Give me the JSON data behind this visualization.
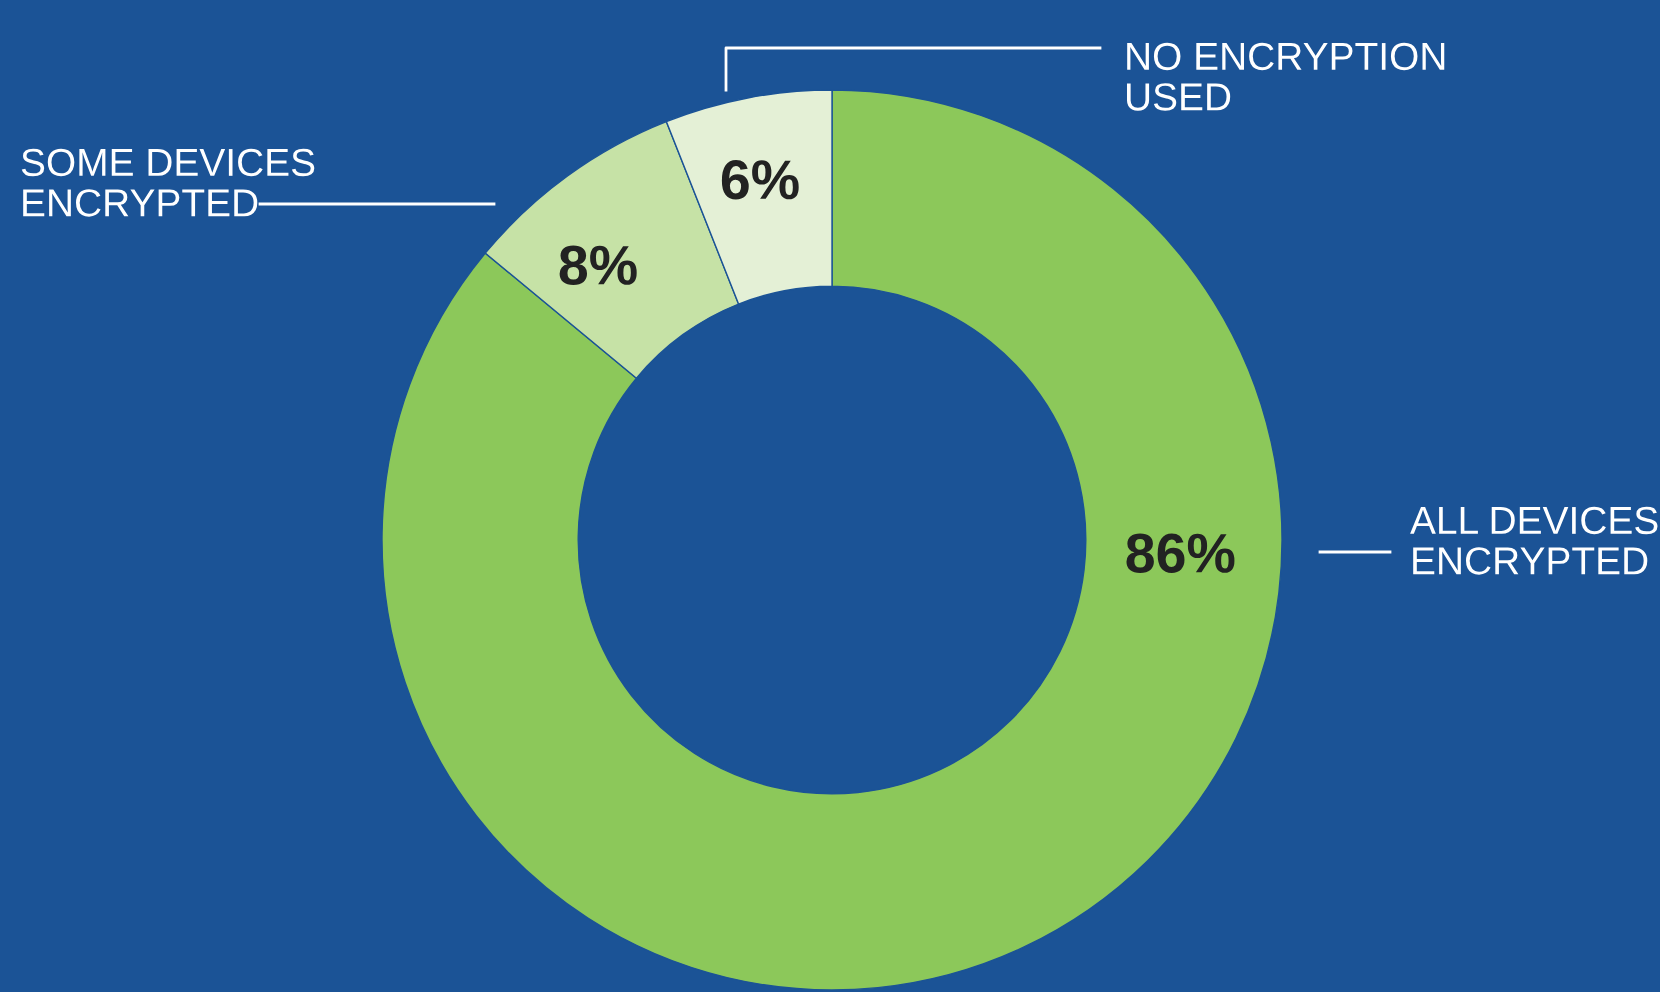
{
  "chart_data": {
    "type": "donut",
    "categories": [
      "ALL DEVICES\nENCRYPTED",
      "SOME DEVICES\nENCRYPTED",
      "NO ENCRYPTION\nUSED"
    ],
    "values": [
      86,
      8,
      6
    ],
    "colors": [
      "#8cc85a",
      "#c6e2a6",
      "#e4f0d6"
    ],
    "value_labels": [
      "86%",
      "8%",
      "6%"
    ]
  }
}
